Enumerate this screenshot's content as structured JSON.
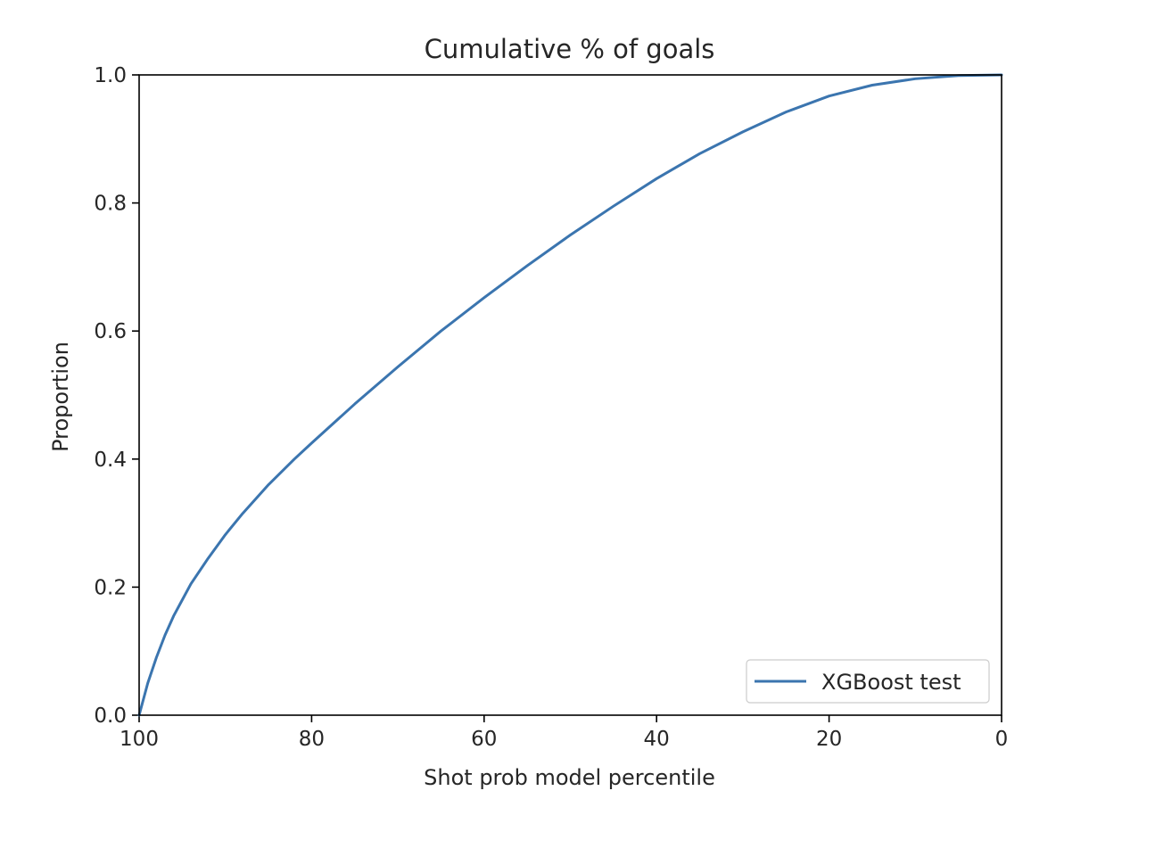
{
  "chart_data": {
    "type": "line",
    "title": "Cumulative % of goals",
    "xlabel": "Shot prob model percentile",
    "ylabel": "Proportion",
    "xlim": [
      100,
      0
    ],
    "ylim": [
      0.0,
      1.0
    ],
    "x_reversed": true,
    "xticks": [
      100,
      80,
      60,
      40,
      20,
      0
    ],
    "yticks": [
      0.0,
      0.2,
      0.4,
      0.6,
      0.8,
      1.0
    ],
    "xtick_labels": [
      "100",
      "80",
      "60",
      "40",
      "20",
      "0"
    ],
    "ytick_labels": [
      "0.0",
      "0.2",
      "0.4",
      "0.6",
      "0.8",
      "1.0"
    ],
    "grid": false,
    "legend_position": "lower-right",
    "series": [
      {
        "name": "XGBoost test",
        "color": "#3b75af",
        "x": [
          100,
          99,
          98,
          97,
          96,
          95,
          94,
          92,
          90,
          88,
          85,
          82,
          80,
          75,
          70,
          65,
          60,
          55,
          50,
          45,
          40,
          35,
          30,
          25,
          20,
          15,
          10,
          5,
          0
        ],
        "y": [
          0.0,
          0.05,
          0.09,
          0.125,
          0.155,
          0.18,
          0.205,
          0.245,
          0.282,
          0.315,
          0.36,
          0.4,
          0.425,
          0.486,
          0.544,
          0.6,
          0.652,
          0.702,
          0.75,
          0.795,
          0.838,
          0.877,
          0.911,
          0.942,
          0.967,
          0.984,
          0.994,
          0.999,
          1.0
        ]
      }
    ]
  }
}
